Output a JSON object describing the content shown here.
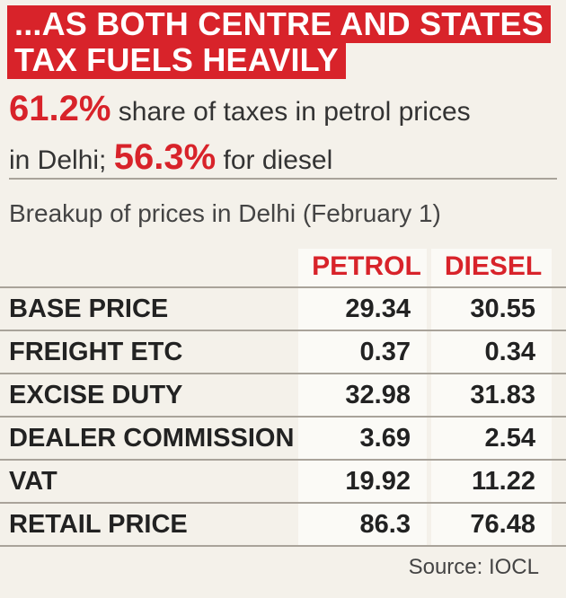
{
  "headline": {
    "line1": "...AS BOTH CENTRE AND STATES",
    "line2": "TAX FUELS HEAVILY"
  },
  "highlight": {
    "petrol_share": "61.2%",
    "petrol_text": "share of taxes in petrol prices",
    "in_delhi_text": "in Delhi;",
    "diesel_share": "56.3%",
    "diesel_text": "for diesel"
  },
  "subtitle": "Breakup of prices in Delhi (February 1)",
  "source": "Source: IOCL",
  "colors": {
    "accent_red": "#d8232a",
    "background": "#f4f1ea"
  },
  "chart_data": {
    "type": "table",
    "columns": [
      "PETROL",
      "DIESEL"
    ],
    "rows": [
      {
        "label": "BASE PRICE",
        "values": [
          "29.34",
          "30.55"
        ]
      },
      {
        "label": "FREIGHT ETC",
        "values": [
          "0.37",
          "0.34"
        ]
      },
      {
        "label": "EXCISE DUTY",
        "values": [
          "32.98",
          "31.83"
        ]
      },
      {
        "label": "DEALER COMMISSION",
        "values": [
          "3.69",
          "2.54"
        ]
      },
      {
        "label": "VAT",
        "values": [
          "19.92",
          "11.22"
        ]
      },
      {
        "label": "RETAIL PRICE",
        "values": [
          "86.3",
          "76.48"
        ]
      }
    ]
  }
}
